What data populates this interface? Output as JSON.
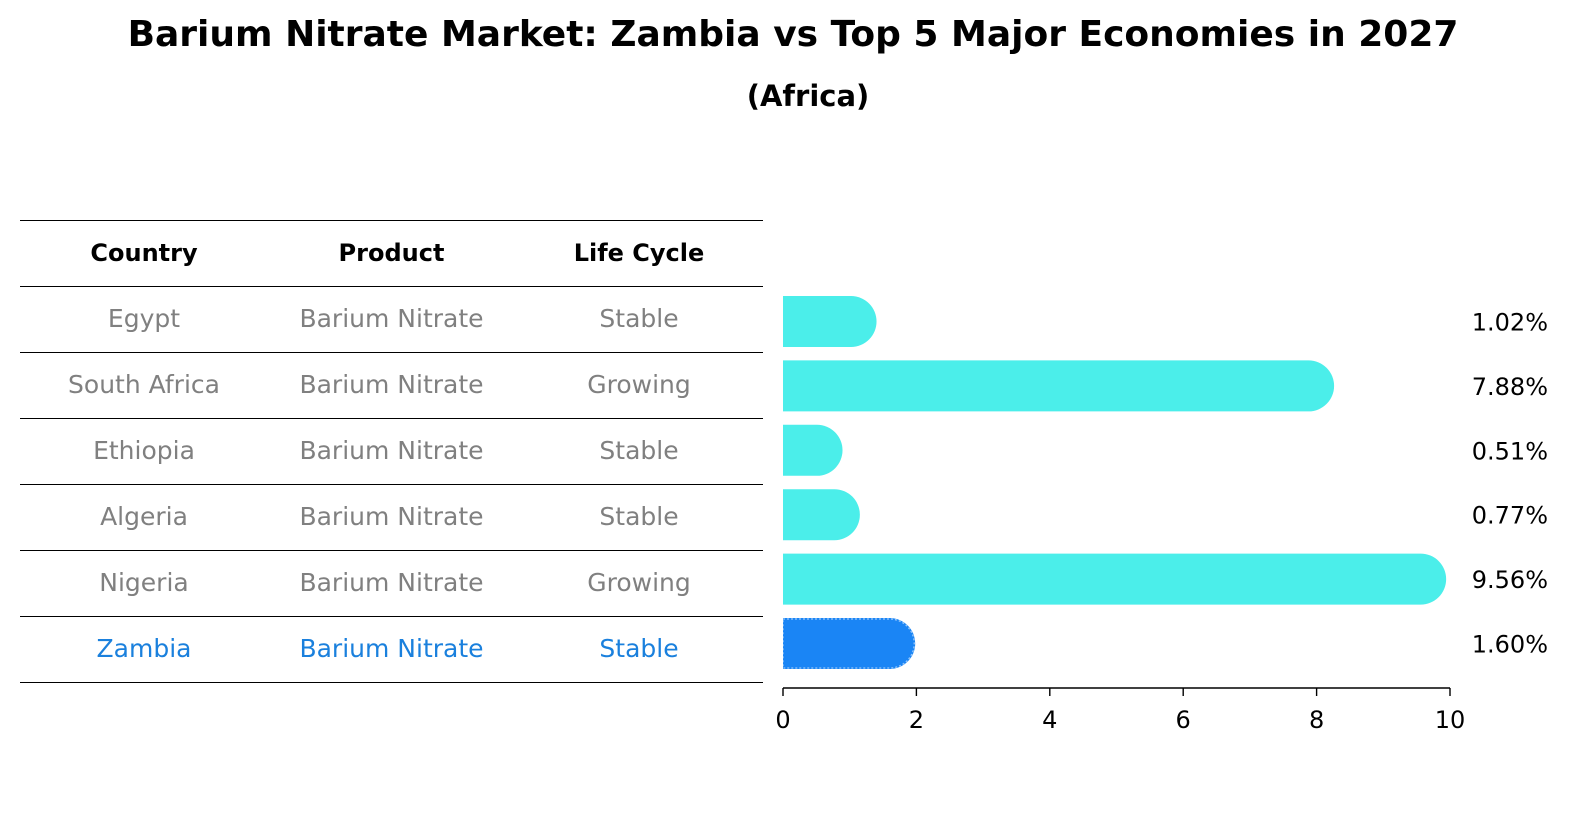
{
  "title": "Barium Nitrate Market: Zambia vs Top 5 Major Economies in 2027",
  "subtitle": "(Africa)",
  "table": {
    "headers": [
      "Country",
      "Product",
      "Life Cycle"
    ],
    "rows": [
      [
        "Egypt",
        "Barium Nitrate",
        "Stable"
      ],
      [
        "South Africa",
        "Barium Nitrate",
        "Growing"
      ],
      [
        "Ethiopia",
        "Barium Nitrate",
        "Stable"
      ],
      [
        "Algeria",
        "Barium Nitrate",
        "Stable"
      ],
      [
        "Nigeria",
        "Barium Nitrate",
        "Growing"
      ],
      [
        "Zambia",
        "Barium Nitrate",
        "Stable"
      ]
    ]
  },
  "colors": {
    "bar": "#4beeea",
    "highlight": "#1a85f5",
    "highlight_text": "#1a80dd",
    "muted_text": "#808080"
  },
  "chart_data": {
    "type": "bar",
    "orientation": "horizontal",
    "categories": [
      "Egypt",
      "South Africa",
      "Ethiopia",
      "Algeria",
      "Nigeria",
      "Zambia"
    ],
    "values": [
      1.02,
      7.88,
      0.51,
      0.77,
      9.56,
      1.6
    ],
    "value_labels": [
      "1.02%",
      "7.88%",
      "0.51%",
      "0.77%",
      "9.56%",
      "1.60%"
    ],
    "highlight_category": "Zambia",
    "xlim": [
      0,
      10
    ],
    "xticks": [
      "0",
      "2",
      "4",
      "6",
      "8",
      "10"
    ],
    "grid": false,
    "title": "Barium Nitrate Market: Zambia vs Top 5 Major Economies in 2027",
    "subtitle": "(Africa)"
  }
}
